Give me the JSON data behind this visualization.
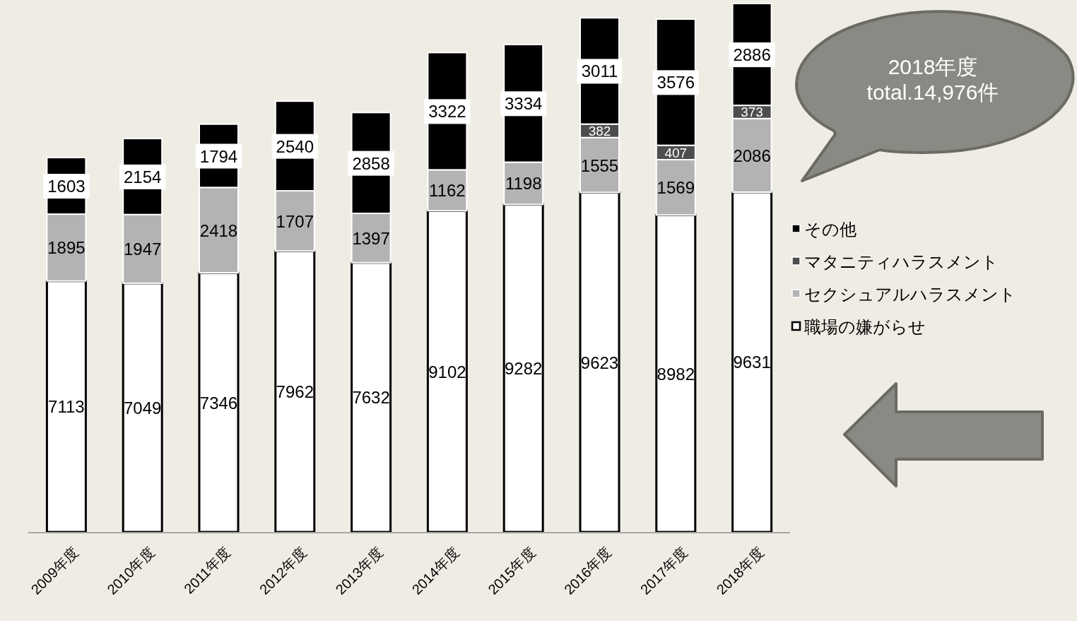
{
  "chart_data": {
    "type": "bar",
    "stacked": true,
    "data_labels": true,
    "legend": "right",
    "categories": [
      "2009年度",
      "2010年度",
      "2011年度",
      "2012年度",
      "2013年度",
      "2014年度",
      "2015年度",
      "2016年度",
      "2017年度",
      "2018年度"
    ],
    "series": [
      {
        "name": "職場の嫌がらせ",
        "color": "#ffffff",
        "values": [
          7113,
          7049,
          7346,
          7962,
          7632,
          9102,
          9282,
          9623,
          8982,
          9631
        ]
      },
      {
        "name": "セクシュアルハラスメント",
        "color": "#b3b3b3",
        "values": [
          1895,
          1947,
          2418,
          1707,
          1397,
          1162,
          1198,
          1555,
          1569,
          2086
        ]
      },
      {
        "name": "マタニティハラスメント",
        "color": "#4d4d4d",
        "values": [
          null,
          null,
          null,
          null,
          null,
          null,
          null,
          382,
          407,
          373
        ]
      },
      {
        "name": "その他",
        "color": "#000000",
        "values": [
          1603,
          2154,
          1794,
          2540,
          2858,
          3322,
          3334,
          3011,
          3576,
          2886
        ]
      }
    ],
    "annotations": [
      "2018年度\ntotal.14,976件"
    ]
  }
}
